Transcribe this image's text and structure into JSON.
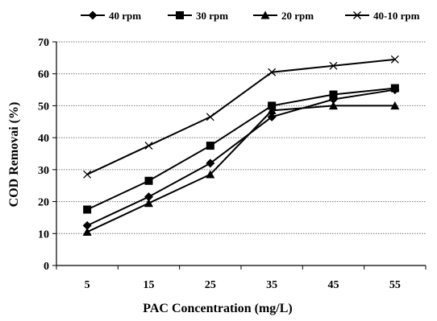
{
  "chart_data": {
    "type": "line",
    "x": [
      5,
      15,
      25,
      35,
      45,
      55
    ],
    "xlabel": "PAC Concentration (mg/L)",
    "ylabel": "COD Removai (%)",
    "ylim": [
      0,
      70
    ],
    "yticks": [
      0,
      10,
      20,
      30,
      40,
      50,
      60,
      70
    ],
    "grid": "horizontal dotted",
    "legend_position": "top",
    "series": [
      {
        "name": "40 rpm",
        "marker": "diamond",
        "values": [
          12.5,
          21.5,
          32,
          46.5,
          52,
          55
        ]
      },
      {
        "name": "30 rpm",
        "marker": "square",
        "values": [
          17.5,
          26.5,
          37.5,
          50,
          53.5,
          55.5
        ]
      },
      {
        "name": "20 rpm",
        "marker": "triangle",
        "values": [
          10.5,
          19.5,
          28.5,
          48.5,
          50,
          50
        ]
      },
      {
        "name": "40-10 rpm",
        "marker": "x",
        "values": [
          28.5,
          37.5,
          46.5,
          60.5,
          62.5,
          64.5
        ]
      }
    ],
    "colors": {
      "line": "#000000",
      "grid": "#777777"
    }
  }
}
